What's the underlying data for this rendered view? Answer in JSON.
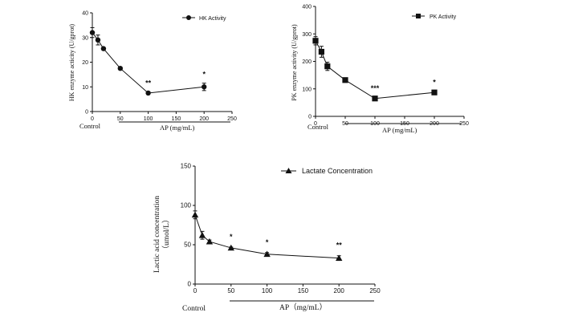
{
  "chart_data": [
    {
      "type": "line",
      "ylabel": "HK enzyme acticity (U/gprot)",
      "xlabel": "AP (mg/mL)",
      "control_label": "Control",
      "legend": "HK Activity",
      "marker": "circle",
      "xlim": [
        0,
        250
      ],
      "ylim": [
        0,
        40
      ],
      "xticks": [
        "0",
        "50",
        "100",
        "150",
        "200",
        "250"
      ],
      "yticks": [
        "0",
        "10",
        "20",
        "30",
        "40"
      ],
      "x": [
        0,
        10,
        20,
        50,
        100,
        200
      ],
      "y": [
        32,
        29,
        25.5,
        17.5,
        7.5,
        10
      ],
      "err": [
        2,
        2,
        0.5,
        0.5,
        0.5,
        1.5
      ],
      "annotations": [
        {
          "x": 100,
          "text": "**"
        },
        {
          "x": 200,
          "text": "*"
        }
      ]
    },
    {
      "type": "line",
      "ylabel": "PK enzyme activity (U/gprot)",
      "xlabel": "AP (mg/mL)",
      "control_label": "Control",
      "legend": "PK Activity",
      "marker": "square",
      "xlim": [
        0,
        250
      ],
      "ylim": [
        0,
        400
      ],
      "xticks": [
        "0",
        "50",
        "100",
        "150",
        "200",
        "250"
      ],
      "yticks": [
        "0",
        "100",
        "200",
        "300",
        "400"
      ],
      "x": [
        0,
        10,
        20,
        50,
        100,
        200
      ],
      "y": [
        275,
        235,
        182,
        132,
        65,
        87
      ],
      "err": [
        15,
        20,
        15,
        5,
        5,
        5
      ],
      "annotations": [
        {
          "x": 100,
          "text": "***"
        },
        {
          "x": 200,
          "text": "*"
        }
      ]
    },
    {
      "type": "line",
      "ylabel_line1": "Lactic acid  concentration",
      "ylabel_line2": "（umol/L）",
      "xlabel": "AP（mg/mL）",
      "control_label": "Control",
      "legend": "Lactate Concentration",
      "marker": "triangle",
      "xlim": [
        0,
        250
      ],
      "ylim": [
        0,
        150
      ],
      "xticks": [
        "0",
        "50",
        "100",
        "150",
        "200",
        "250"
      ],
      "yticks": [
        "0",
        "50",
        "100",
        "150"
      ],
      "x": [
        0,
        10,
        20,
        50,
        100,
        200
      ],
      "y": [
        88,
        62,
        54,
        46,
        38,
        33
      ],
      "err": [
        5,
        5,
        2,
        1,
        2,
        3
      ],
      "annotations": [
        {
          "x": 50,
          "text": "*"
        },
        {
          "x": 100,
          "text": "*"
        },
        {
          "x": 200,
          "text": "**"
        }
      ]
    }
  ]
}
